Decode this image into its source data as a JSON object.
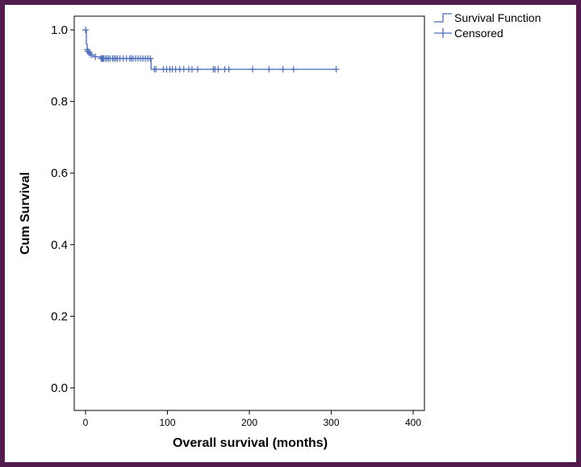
{
  "chart_data": {
    "type": "line",
    "xlabel": "Overall survival (months)",
    "ylabel": "Cum Survival",
    "xlim": [
      0,
      400
    ],
    "ylim": [
      0.0,
      1.0
    ],
    "x_ticks": [
      0,
      100,
      200,
      300,
      400
    ],
    "x_tick_labels": [
      "0",
      "100",
      "200",
      "300",
      "400"
    ],
    "y_ticks": [
      0.0,
      0.2,
      0.4,
      0.6,
      0.8,
      1.0
    ],
    "y_tick_labels": [
      "0.0",
      "0.2",
      "0.4",
      "0.6",
      "0.8",
      "1.0"
    ],
    "grid": false,
    "legend_position": "top-right",
    "legend": [
      "Survival Function",
      "Censored"
    ],
    "series": [
      {
        "name": "Survival Function",
        "color": "#4a6bbf",
        "step": true,
        "x": [
          0,
          1,
          2,
          3,
          4,
          6,
          10,
          18,
          80,
          306
        ],
        "y": [
          1.0,
          0.96,
          0.945,
          0.94,
          0.935,
          0.93,
          0.925,
          0.92,
          0.89,
          0.89
        ]
      },
      {
        "name": "Censored",
        "color": "#4a6bbf",
        "marker": "+",
        "x": [
          0,
          2,
          3,
          5,
          7,
          12,
          19,
          20,
          21,
          22,
          24,
          26,
          28,
          30,
          33,
          35,
          37,
          39,
          42,
          46,
          50,
          54,
          56,
          58,
          61,
          64,
          67,
          70,
          73,
          76,
          79,
          84,
          86,
          95,
          99,
          103,
          106,
          110,
          115,
          120,
          126,
          130,
          137,
          156,
          158,
          162,
          170,
          175,
          204,
          224,
          241,
          254,
          306
        ],
        "y": [
          1.0,
          0.945,
          0.94,
          0.935,
          0.93,
          0.925,
          0.92,
          0.92,
          0.92,
          0.92,
          0.92,
          0.92,
          0.92,
          0.92,
          0.92,
          0.92,
          0.92,
          0.92,
          0.92,
          0.92,
          0.92,
          0.92,
          0.92,
          0.92,
          0.92,
          0.92,
          0.92,
          0.92,
          0.92,
          0.92,
          0.92,
          0.89,
          0.89,
          0.89,
          0.89,
          0.89,
          0.89,
          0.89,
          0.89,
          0.89,
          0.89,
          0.89,
          0.89,
          0.89,
          0.89,
          0.89,
          0.89,
          0.89,
          0.89,
          0.89,
          0.89,
          0.89,
          0.89
        ]
      }
    ]
  }
}
